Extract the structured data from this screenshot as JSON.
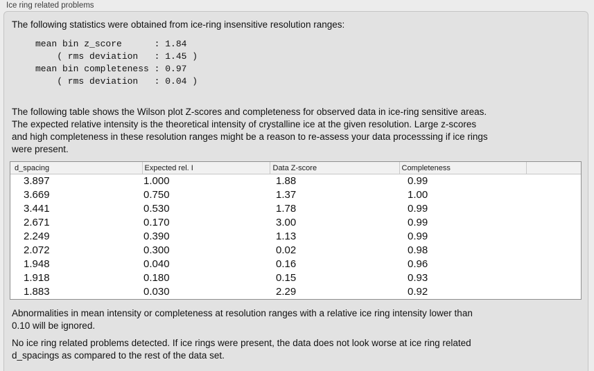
{
  "panel": {
    "title": "Ice ring related problems"
  },
  "intro": {
    "text": "The following statistics were obtained from ice-ring insensitive resolution ranges:",
    "stats_block": "mean bin z_score      : 1.84\n    ( rms deviation   : 1.45 )\nmean bin completeness : 0.97\n    ( rms deviation   : 0.04 )"
  },
  "description": "The following table shows the Wilson plot Z-scores and completeness for observed data in ice-ring sensitive areas.\nThe expected relative intensity is the theoretical intensity of crystalline ice at the given resolution. Large z-scores\nand high completeness in these resolution ranges might be a reason to re-assess your data processsing if ice rings\nwere present.",
  "table": {
    "columns": [
      "d_spacing",
      "Expected rel. I",
      "Data Z-score",
      "Completeness",
      ""
    ],
    "rows": [
      [
        "3.897",
        "1.000",
        "1.88",
        "0.99"
      ],
      [
        "3.669",
        "0.750",
        "1.37",
        "1.00"
      ],
      [
        "3.441",
        "0.530",
        "1.78",
        "0.99"
      ],
      [
        "2.671",
        "0.170",
        "3.00",
        "0.99"
      ],
      [
        "2.249",
        "0.390",
        "1.13",
        "0.99"
      ],
      [
        "2.072",
        "0.300",
        "0.02",
        "0.98"
      ],
      [
        "1.948",
        "0.040",
        "0.16",
        "0.96"
      ],
      [
        "1.918",
        "0.180",
        "0.15",
        "0.93"
      ],
      [
        "1.883",
        "0.030",
        "2.29",
        "0.92"
      ]
    ]
  },
  "notes": {
    "ignore_note": "Abnormalities in mean intensity or completeness at resolution ranges with a relative ice ring intensity lower than\n0.10 will be ignored.",
    "conclusion": "No ice ring related problems detected. If ice rings were present, the data does not look worse at ice ring related\nd_spacings as compared to the rest of the data set."
  },
  "colors": {
    "page_bg": "#ececec",
    "panel_bg": "#e2e2e2",
    "panel_border": "#c5c5c5",
    "table_bg": "#ffffff",
    "table_border": "#8f8f8f",
    "header_bg": "#f1f1f1",
    "header_border": "#c6c6c6",
    "header_tick": "#c9c9c9",
    "text": "#111111",
    "title_color": "#3c3c3c"
  }
}
